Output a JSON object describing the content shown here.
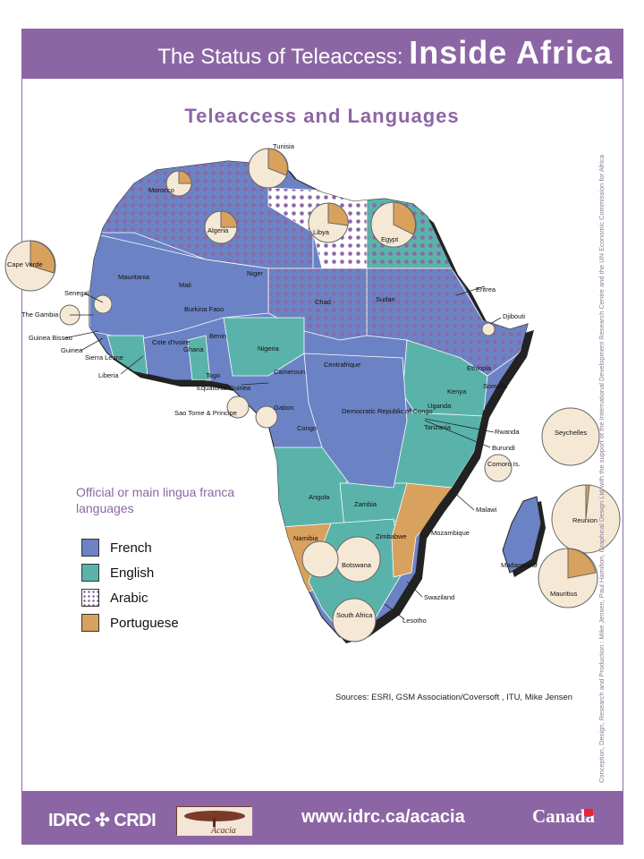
{
  "header": {
    "title_prefix": "The Status of Teleaccess: ",
    "title_main": "Inside Africa"
  },
  "subtitle": "Teleaccess and Languages",
  "legend": {
    "title": "Official or main lingua franca languages",
    "items": [
      {
        "label": "French",
        "color": "#6b83c4"
      },
      {
        "label": "English",
        "color": "#5ab3ab"
      },
      {
        "label": "Arabic",
        "color": "#ffffff"
      },
      {
        "label": "Portuguese",
        "color": "#d9a15e"
      }
    ]
  },
  "colors": {
    "brand": "#8c66a4",
    "french": "#6b83c4",
    "english": "#5ab3ab",
    "arabic_dots": "#8c66a4",
    "portuguese": "#d9a15e",
    "pie_fill": "#f5e9d6",
    "pie_slice": "#d9a15e"
  },
  "countries": [
    "Tunisia",
    "Morocco",
    "Algeria",
    "Libya",
    "Egypt",
    "Cape Verde",
    "Mauritania",
    "Mali",
    "Niger",
    "Chad",
    "Sudan",
    "Eritrea",
    "Senegal",
    "The Gambia",
    "Guinea Bissau",
    "Guinea",
    "Sierra Leone",
    "Liberia",
    "Burkina Faso",
    "Cote d'Ivoire",
    "Ghana",
    "Togo",
    "Benin",
    "Nigeria",
    "Djibouti",
    "Ethiopia",
    "Somalia",
    "Cameroun",
    "Equatorial Guinea",
    "Sao Tome & Principe",
    "Gabon",
    "Congo",
    "Centrafrique",
    "Democratic Republic of Congo",
    "Uganda",
    "Kenya",
    "Rwanda",
    "Burundi",
    "Tanzania",
    "Seychelles",
    "Comoro Is.",
    "Angola",
    "Zambia",
    "Malawi",
    "Namibia",
    "Zimbabwe",
    "Mozambique",
    "Madagascar",
    "Reunion",
    "Mauritius",
    "Botswana",
    "Swaziland",
    "South Africa",
    "Lesotho"
  ],
  "sources": "Sources: ESRI, GSM Association/Coversoft , ITU, Mike Jensen",
  "credit": "Conception, Design, Research and Production : Mike Jensen, Paul Hamilton, Graphical Design Ltd with the support of the International Development Research Centre and the UN Economic Commission for Africa",
  "footer": {
    "idrc": "IDRC",
    "crdi": "CRDI",
    "acacia": "Acacia",
    "url": "www.idrc.ca/acacia",
    "canada": "Canada"
  }
}
